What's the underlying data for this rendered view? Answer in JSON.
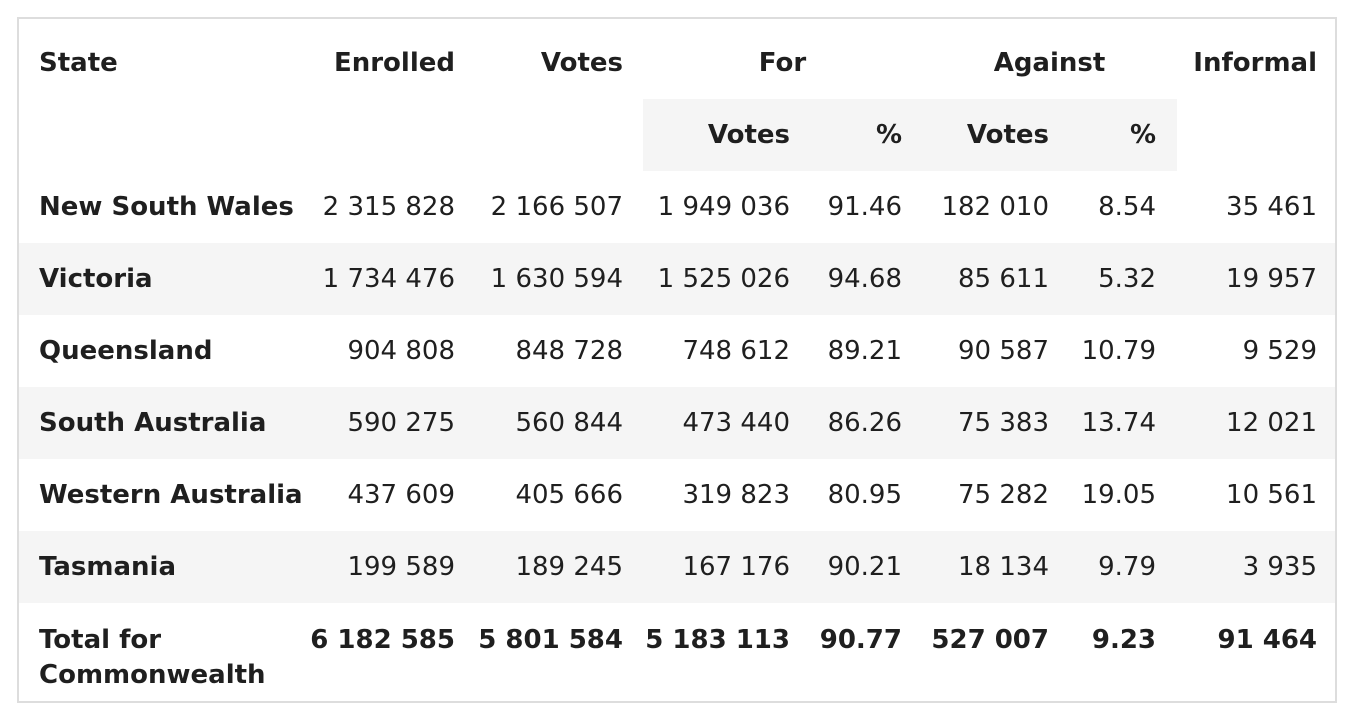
{
  "headers": {
    "state": "State",
    "enrolled": "Enrolled",
    "votes": "Votes",
    "for": "For",
    "against": "Against",
    "informal": "Informal",
    "for_votes": "Votes",
    "for_pct": "%",
    "against_votes": "Votes",
    "against_pct": "%"
  },
  "rows": [
    {
      "state": "New South Wales",
      "enrolled": "2 315 828",
      "votes": "2 166 507",
      "for_votes": "1 949 036",
      "for_pct": "91.46",
      "against_votes": "182 010",
      "against_pct": "8.54",
      "informal": "35 461"
    },
    {
      "state": "Victoria",
      "enrolled": "1 734 476",
      "votes": "1 630 594",
      "for_votes": "1 525 026",
      "for_pct": "94.68",
      "against_votes": "85 611",
      "against_pct": "5.32",
      "informal": "19 957"
    },
    {
      "state": "Queensland",
      "enrolled": "904 808",
      "votes": "848 728",
      "for_votes": "748 612",
      "for_pct": "89.21",
      "against_votes": "90 587",
      "against_pct": "10.79",
      "informal": "9 529"
    },
    {
      "state": "South Australia",
      "enrolled": "590 275",
      "votes": "560 844",
      "for_votes": "473 440",
      "for_pct": "86.26",
      "against_votes": "75 383",
      "against_pct": "13.74",
      "informal": "12 021"
    },
    {
      "state": "Western Australia",
      "enrolled": "437 609",
      "votes": "405 666",
      "for_votes": "319 823",
      "for_pct": "80.95",
      "against_votes": "75 282",
      "against_pct": "19.05",
      "informal": "10 561"
    },
    {
      "state": "Tasmania",
      "enrolled": "199 589",
      "votes": "189 245",
      "for_votes": "167 176",
      "for_pct": "90.21",
      "against_votes": "18 134",
      "against_pct": "9.79",
      "informal": "3 935"
    }
  ],
  "total": {
    "state": "Total for Commonwealth",
    "enrolled": "6 182 585",
    "votes": "5 801 584",
    "for_votes": "5 183 113",
    "for_pct": "90.77",
    "against_votes": "527 007",
    "against_pct": "9.23",
    "informal": "91 464"
  }
}
